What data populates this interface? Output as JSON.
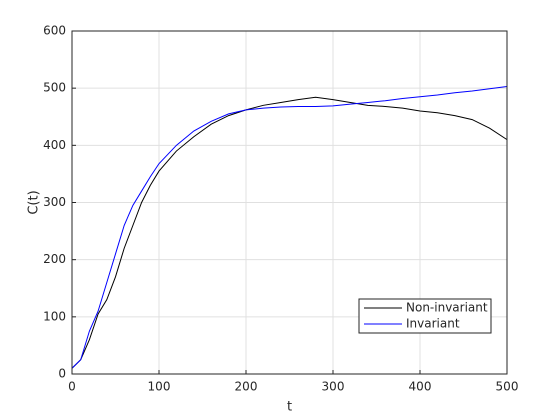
{
  "chart_data": {
    "type": "line",
    "xlabel": "t",
    "ylabel": "C(t)",
    "x": [
      0,
      10,
      20,
      30,
      40,
      50,
      60,
      70,
      80,
      90,
      100,
      120,
      140,
      160,
      180,
      200,
      220,
      240,
      260,
      280,
      300,
      320,
      340,
      360,
      380,
      400,
      420,
      440,
      460,
      480,
      500
    ],
    "series": [
      {
        "name": "Non-invariant",
        "color": "#000000",
        "values": [
          10,
          25,
          60,
          105,
          130,
          170,
          220,
          260,
          300,
          330,
          355,
          390,
          415,
          437,
          452,
          462,
          470,
          475,
          480,
          484,
          480,
          475,
          470,
          468,
          465,
          460,
          457,
          452,
          445,
          430,
          410
        ]
      },
      {
        "name": "Invariant",
        "color": "#0000ff",
        "values": [
          10,
          25,
          75,
          110,
          160,
          210,
          260,
          295,
          320,
          345,
          368,
          400,
          425,
          442,
          455,
          462,
          465,
          467,
          468,
          468,
          469,
          472,
          475,
          478,
          482,
          485,
          488,
          492,
          495,
          499,
          503
        ]
      }
    ],
    "xlim": [
      0,
      500
    ],
    "xticks": [
      0,
      100,
      200,
      300,
      400,
      500
    ],
    "ylim": [
      0,
      600
    ],
    "yticks": [
      0,
      100,
      200,
      300,
      400,
      500,
      600
    ],
    "grid": true,
    "legend": "lower-right"
  }
}
